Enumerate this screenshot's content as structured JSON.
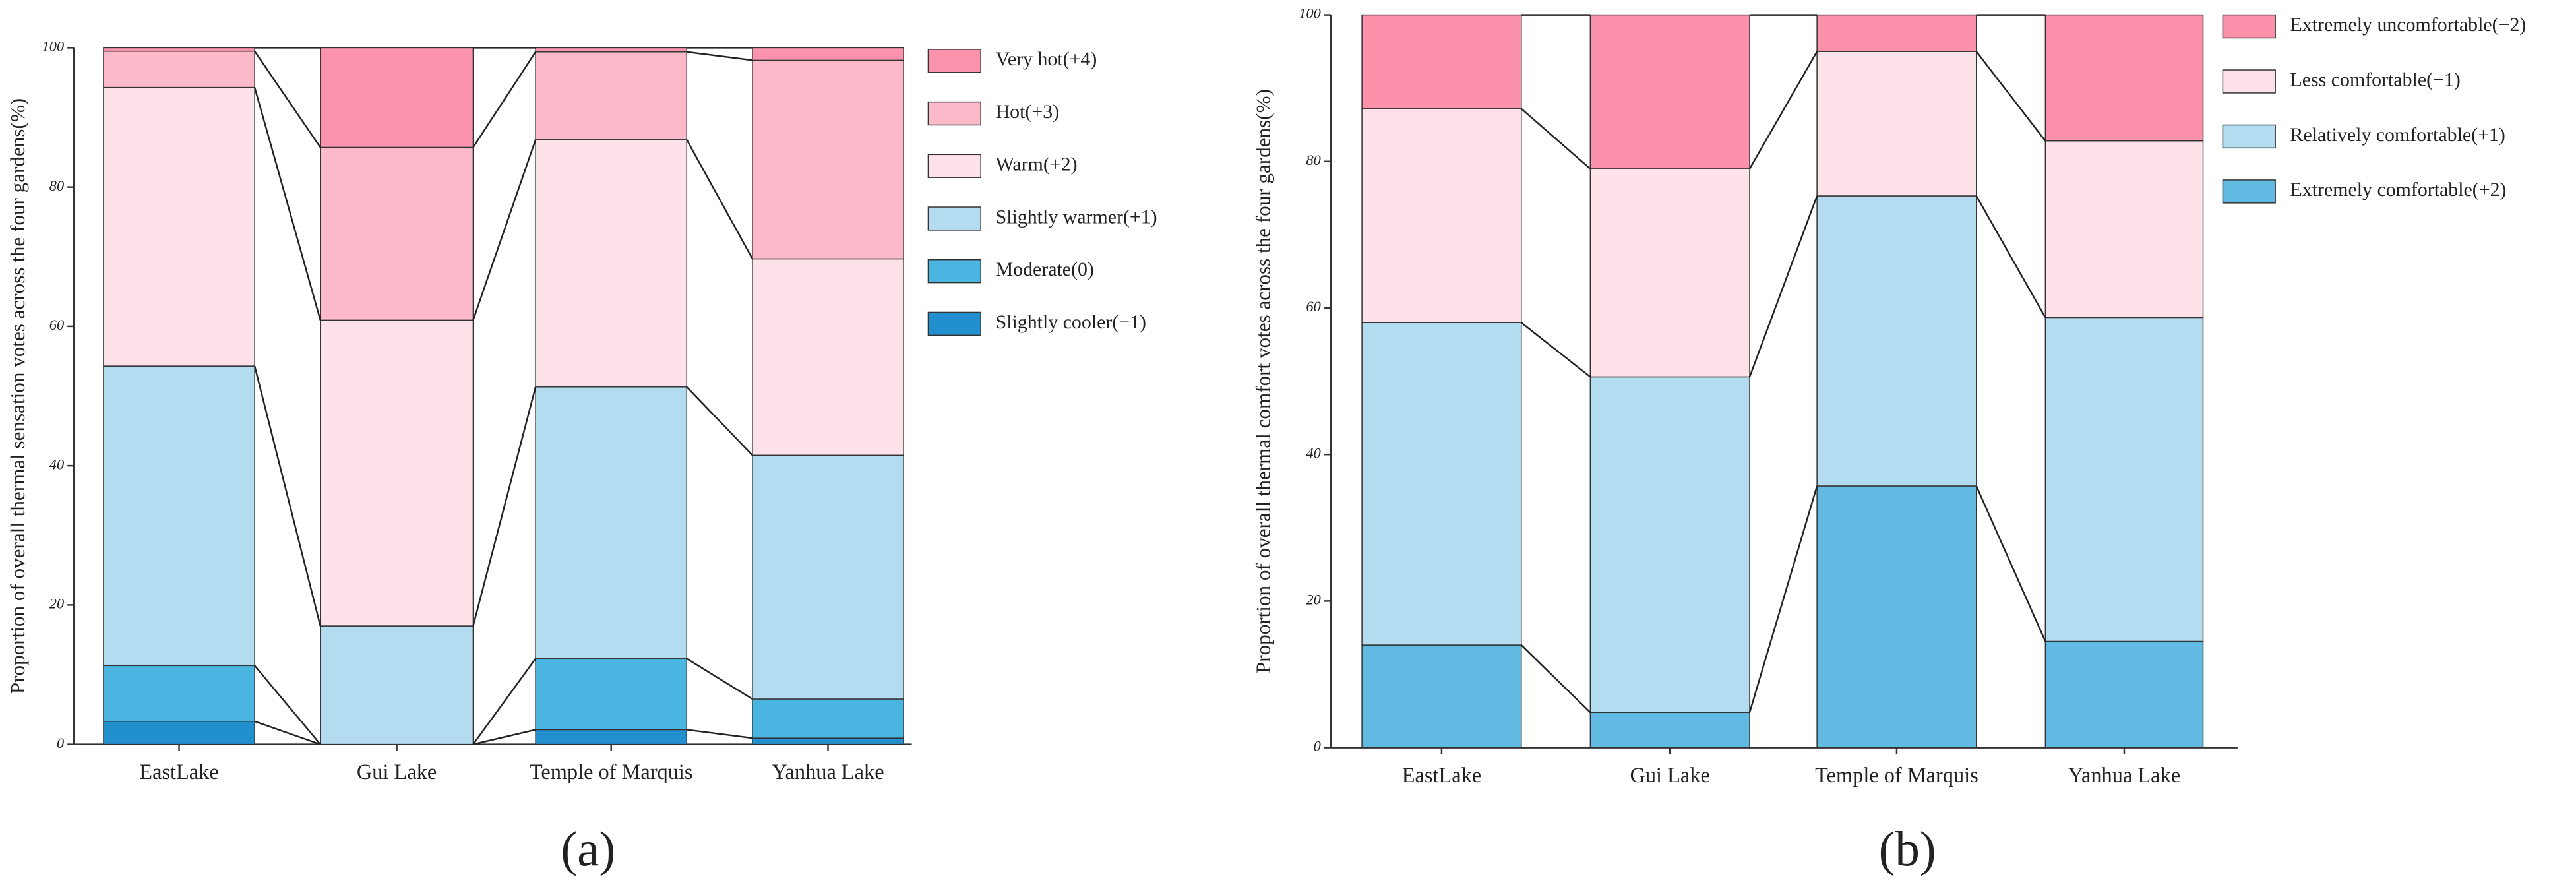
{
  "chart_data": [
    {
      "type": "bar",
      "stacked": true,
      "caption": "(a)",
      "y_label": "Proportion of overall thermal sensation votes across the four gardens(%)",
      "categories": [
        "EastLake",
        "Gui Lake",
        "Temple of Marquis",
        "Yanhua Lake"
      ],
      "ylim": [
        0,
        100
      ],
      "yticks": [
        0,
        20,
        40,
        60,
        80,
        100
      ],
      "series": [
        {
          "name": "Slightly cooler(−1)",
          "color": "#2290cf",
          "values": [
            3.3,
            0,
            2.1,
            0.9
          ]
        },
        {
          "name": "Moderate(0)",
          "color": "#4ab5e1",
          "values": [
            8.0,
            0,
            10.2,
            5.6
          ]
        },
        {
          "name": "Slightly warmer(+1)",
          "color": "#b4dcf1",
          "values": [
            43.0,
            17.0,
            39.0,
            35.0
          ]
        },
        {
          "name": "Warm(+2)",
          "color": "#fde3e9",
          "values": [
            40.0,
            43.9,
            35.5,
            28.2
          ]
        },
        {
          "name": "Hot(+3)",
          "color": "#fcb9ca",
          "values": [
            5.2,
            24.8,
            12.6,
            28.5
          ]
        },
        {
          "name": "Very hot(+4)",
          "color": "#fa93ab",
          "values": [
            0.5,
            14.3,
            0.6,
            1.8
          ]
        }
      ]
    },
    {
      "type": "bar",
      "stacked": true,
      "caption": "(b)",
      "y_label": "Proportion of overall thermal comfort votes across the four gardens(%)",
      "categories": [
        "EastLake",
        "Gui Lake",
        "Temple of Marquis",
        "Yanhua Lake"
      ],
      "ylim": [
        0,
        100
      ],
      "yticks": [
        0,
        20,
        40,
        60,
        80,
        100
      ],
      "series": [
        {
          "name": "Extremely comfortable(+2)",
          "color": "#60bae2",
          "values": [
            14.0,
            4.8,
            35.7,
            14.5
          ]
        },
        {
          "name": "Relatively comfortable(+1)",
          "color": "#b4dcf1",
          "values": [
            44.0,
            45.8,
            39.6,
            44.2
          ]
        },
        {
          "name": "Less comfortable(−1)",
          "color": "#fde3e9",
          "values": [
            29.2,
            28.4,
            19.7,
            24.1
          ]
        },
        {
          "name": "Extremely uncomfortable(−2)",
          "color": "#fb91aa",
          "values": [
            12.8,
            21.0,
            5.0,
            17.2
          ]
        }
      ]
    }
  ]
}
